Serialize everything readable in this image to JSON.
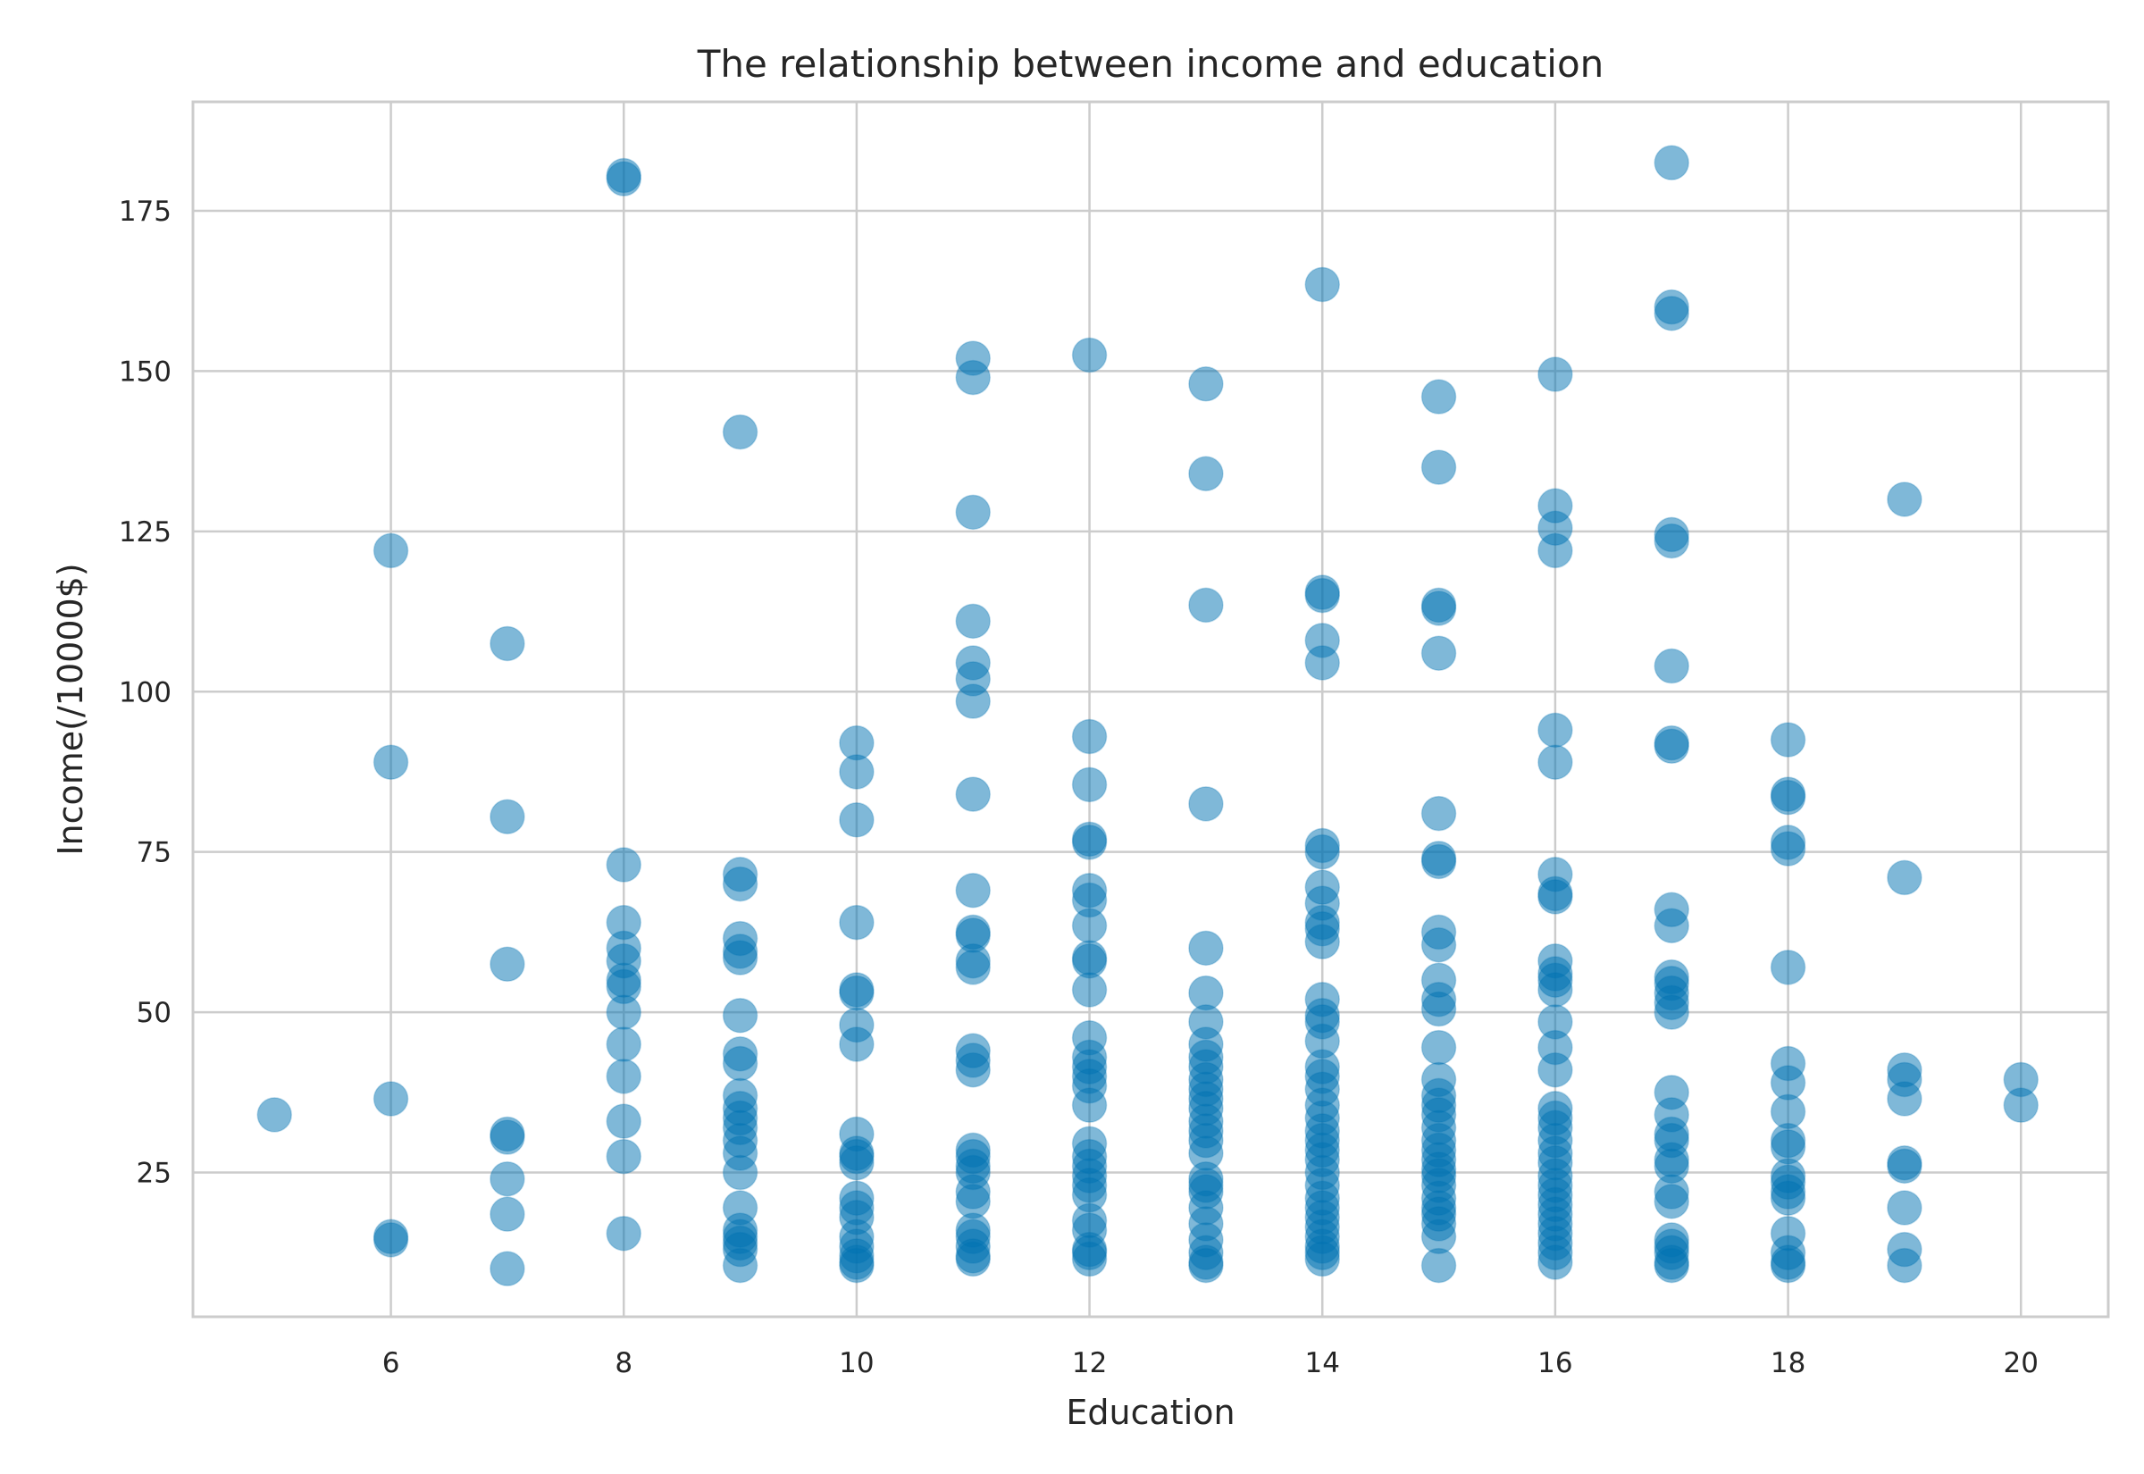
{
  "chart_data": {
    "type": "scatter",
    "title": "The relationship between income and education",
    "xlabel": "Education",
    "ylabel": "Income(/10000$)",
    "xlim": [
      4.3,
      20.75
    ],
    "ylim": [
      2.5,
      192
    ],
    "xticks": [
      6,
      8,
      10,
      12,
      14,
      16,
      18,
      20
    ],
    "yticks": [
      25,
      50,
      75,
      100,
      125,
      150,
      175
    ],
    "grid": true,
    "point_color": "#0072B2",
    "series": [
      {
        "points": [
          [
            5,
            34
          ],
          [
            6,
            122
          ],
          [
            6,
            89
          ],
          [
            6,
            36.5
          ],
          [
            6,
            15
          ],
          [
            6,
            14.5
          ],
          [
            7,
            107.5
          ],
          [
            7,
            80.5
          ],
          [
            7,
            57.5
          ],
          [
            7,
            31
          ],
          [
            7,
            30.5
          ],
          [
            7,
            24
          ],
          [
            7,
            18.5
          ],
          [
            7,
            10
          ],
          [
            8,
            180.5
          ],
          [
            8,
            180
          ],
          [
            8,
            73
          ],
          [
            8,
            64
          ],
          [
            8,
            60
          ],
          [
            8,
            58
          ],
          [
            8,
            55
          ],
          [
            8,
            54
          ],
          [
            8,
            50
          ],
          [
            8,
            45
          ],
          [
            8,
            40
          ],
          [
            8,
            33
          ],
          [
            8,
            27.5
          ],
          [
            8,
            15.5
          ],
          [
            9,
            140.5
          ],
          [
            9,
            71.5
          ],
          [
            9,
            70
          ],
          [
            9,
            61.5
          ],
          [
            9,
            59.5
          ],
          [
            9,
            58.5
          ],
          [
            9,
            49.5
          ],
          [
            9,
            43.5
          ],
          [
            9,
            42
          ],
          [
            9,
            37
          ],
          [
            9,
            35
          ],
          [
            9,
            33.5
          ],
          [
            9,
            32
          ],
          [
            9,
            30
          ],
          [
            9,
            28
          ],
          [
            9,
            25
          ],
          [
            9,
            19.5
          ],
          [
            9,
            16
          ],
          [
            9,
            15
          ],
          [
            9,
            14
          ],
          [
            9,
            13
          ],
          [
            9,
            10.5
          ],
          [
            10,
            92
          ],
          [
            10,
            87.5
          ],
          [
            10,
            80
          ],
          [
            10,
            64
          ],
          [
            10,
            53.5
          ],
          [
            10,
            53
          ],
          [
            10,
            48
          ],
          [
            10,
            45
          ],
          [
            10,
            31
          ],
          [
            10,
            28
          ],
          [
            10,
            27.5
          ],
          [
            10,
            26.5
          ],
          [
            10,
            21
          ],
          [
            10,
            19.5
          ],
          [
            10,
            18
          ],
          [
            10,
            15
          ],
          [
            10,
            13.5
          ],
          [
            10,
            12
          ],
          [
            10,
            11
          ],
          [
            10,
            10.5
          ],
          [
            11,
            152
          ],
          [
            11,
            149
          ],
          [
            11,
            128
          ],
          [
            11,
            111
          ],
          [
            11,
            104.5
          ],
          [
            11,
            102
          ],
          [
            11,
            98.5
          ],
          [
            11,
            84
          ],
          [
            11,
            69
          ],
          [
            11,
            62.5
          ],
          [
            11,
            62
          ],
          [
            11,
            58
          ],
          [
            11,
            57
          ],
          [
            11,
            44
          ],
          [
            11,
            42.5
          ],
          [
            11,
            41
          ],
          [
            11,
            28.5
          ],
          [
            11,
            27.5
          ],
          [
            11,
            26
          ],
          [
            11,
            25
          ],
          [
            11,
            22
          ],
          [
            11,
            20.5
          ],
          [
            11,
            16
          ],
          [
            11,
            15
          ],
          [
            11,
            13.5
          ],
          [
            11,
            12
          ],
          [
            11,
            11.5
          ],
          [
            12,
            152.5
          ],
          [
            12,
            93
          ],
          [
            12,
            85.5
          ],
          [
            12,
            77
          ],
          [
            12,
            76.5
          ],
          [
            12,
            69
          ],
          [
            12,
            67.5
          ],
          [
            12,
            63.5
          ],
          [
            12,
            58.5
          ],
          [
            12,
            58
          ],
          [
            12,
            53.5
          ],
          [
            12,
            46
          ],
          [
            12,
            43
          ],
          [
            12,
            41.5
          ],
          [
            12,
            40
          ],
          [
            12,
            38.5
          ],
          [
            12,
            35.5
          ],
          [
            12,
            29.5
          ],
          [
            12,
            27.5
          ],
          [
            12,
            26
          ],
          [
            12,
            24.5
          ],
          [
            12,
            23
          ],
          [
            12,
            21.5
          ],
          [
            12,
            17.5
          ],
          [
            12,
            16
          ],
          [
            12,
            13
          ],
          [
            12,
            12.5
          ],
          [
            12,
            11.5
          ],
          [
            13,
            148
          ],
          [
            13,
            134
          ],
          [
            13,
            113.5
          ],
          [
            13,
            82.5
          ],
          [
            13,
            60
          ],
          [
            13,
            53
          ],
          [
            13,
            48.5
          ],
          [
            13,
            45
          ],
          [
            13,
            43
          ],
          [
            13,
            41.5
          ],
          [
            13,
            39.5
          ],
          [
            13,
            38
          ],
          [
            13,
            36.5
          ],
          [
            13,
            35
          ],
          [
            13,
            33
          ],
          [
            13,
            31.5
          ],
          [
            13,
            30
          ],
          [
            13,
            28
          ],
          [
            13,
            24
          ],
          [
            13,
            23
          ],
          [
            13,
            22
          ],
          [
            13,
            19.5
          ],
          [
            13,
            17
          ],
          [
            13,
            14.5
          ],
          [
            13,
            12.5
          ],
          [
            13,
            11
          ],
          [
            13,
            10.5
          ],
          [
            14,
            163.5
          ],
          [
            14,
            115.5
          ],
          [
            14,
            115
          ],
          [
            14,
            108
          ],
          [
            14,
            104.5
          ],
          [
            14,
            76
          ],
          [
            14,
            75
          ],
          [
            14,
            69.5
          ],
          [
            14,
            67
          ],
          [
            14,
            64
          ],
          [
            14,
            63
          ],
          [
            14,
            61
          ],
          [
            14,
            52
          ],
          [
            14,
            49.5
          ],
          [
            14,
            48.5
          ],
          [
            14,
            45.5
          ],
          [
            14,
            41.5
          ],
          [
            14,
            40
          ],
          [
            14,
            38
          ],
          [
            14,
            35.5
          ],
          [
            14,
            33.5
          ],
          [
            14,
            31.5
          ],
          [
            14,
            30
          ],
          [
            14,
            28.5
          ],
          [
            14,
            27
          ],
          [
            14,
            25
          ],
          [
            14,
            23
          ],
          [
            14,
            21
          ],
          [
            14,
            19.5
          ],
          [
            14,
            18
          ],
          [
            14,
            16.5
          ],
          [
            14,
            15
          ],
          [
            14,
            13.5
          ],
          [
            14,
            12.5
          ],
          [
            14,
            11.5
          ],
          [
            15,
            146
          ],
          [
            15,
            135
          ],
          [
            15,
            113.5
          ],
          [
            15,
            113
          ],
          [
            15,
            106
          ],
          [
            15,
            81
          ],
          [
            15,
            74
          ],
          [
            15,
            73.5
          ],
          [
            15,
            62.5
          ],
          [
            15,
            60.5
          ],
          [
            15,
            55
          ],
          [
            15,
            52
          ],
          [
            15,
            50.5
          ],
          [
            15,
            44.5
          ],
          [
            15,
            39.5
          ],
          [
            15,
            37
          ],
          [
            15,
            35.5
          ],
          [
            15,
            34
          ],
          [
            15,
            32
          ],
          [
            15,
            30
          ],
          [
            15,
            28.5
          ],
          [
            15,
            27
          ],
          [
            15,
            25.5
          ],
          [
            15,
            24.5
          ],
          [
            15,
            23
          ],
          [
            15,
            21
          ],
          [
            15,
            19.5
          ],
          [
            15,
            18.5
          ],
          [
            15,
            17
          ],
          [
            15,
            15
          ],
          [
            15,
            10.5
          ],
          [
            16,
            149.5
          ],
          [
            16,
            129
          ],
          [
            16,
            125.5
          ],
          [
            16,
            122
          ],
          [
            16,
            94
          ],
          [
            16,
            89
          ],
          [
            16,
            71.5
          ],
          [
            16,
            68.5
          ],
          [
            16,
            68
          ],
          [
            16,
            58
          ],
          [
            16,
            56
          ],
          [
            16,
            55
          ],
          [
            16,
            53.5
          ],
          [
            16,
            48.5
          ],
          [
            16,
            44.5
          ],
          [
            16,
            41
          ],
          [
            16,
            35
          ],
          [
            16,
            33.5
          ],
          [
            16,
            32
          ],
          [
            16,
            30
          ],
          [
            16,
            28
          ],
          [
            16,
            26.5
          ],
          [
            16,
            24.5
          ],
          [
            16,
            23
          ],
          [
            16,
            21.5
          ],
          [
            16,
            20
          ],
          [
            16,
            18.5
          ],
          [
            16,
            17
          ],
          [
            16,
            15.5
          ],
          [
            16,
            14
          ],
          [
            16,
            12.5
          ],
          [
            16,
            11
          ],
          [
            17,
            182.5
          ],
          [
            17,
            160
          ],
          [
            17,
            159
          ],
          [
            17,
            124.5
          ],
          [
            17,
            123.5
          ],
          [
            17,
            104
          ],
          [
            17,
            92
          ],
          [
            17,
            91.5
          ],
          [
            17,
            66
          ],
          [
            17,
            63.5
          ],
          [
            17,
            55.5
          ],
          [
            17,
            54.5
          ],
          [
            17,
            53
          ],
          [
            17,
            51.5
          ],
          [
            17,
            50
          ],
          [
            17,
            37.5
          ],
          [
            17,
            34
          ],
          [
            17,
            31
          ],
          [
            17,
            30
          ],
          [
            17,
            27
          ],
          [
            17,
            26
          ],
          [
            17,
            22
          ],
          [
            17,
            20.5
          ],
          [
            17,
            14.5
          ],
          [
            17,
            13.5
          ],
          [
            17,
            12.5
          ],
          [
            17,
            11
          ],
          [
            17,
            10.5
          ],
          [
            18,
            92.5
          ],
          [
            18,
            84
          ],
          [
            18,
            83.5
          ],
          [
            18,
            76.5
          ],
          [
            18,
            75.5
          ],
          [
            18,
            57
          ],
          [
            18,
            42
          ],
          [
            18,
            39
          ],
          [
            18,
            34.5
          ],
          [
            18,
            30
          ],
          [
            18,
            29
          ],
          [
            18,
            24.5
          ],
          [
            18,
            23.5
          ],
          [
            18,
            22
          ],
          [
            18,
            21
          ],
          [
            18,
            15.5
          ],
          [
            18,
            12.5
          ],
          [
            18,
            11
          ],
          [
            18,
            10.5
          ],
          [
            19,
            130
          ],
          [
            19,
            71
          ],
          [
            19,
            41
          ],
          [
            19,
            39.5
          ],
          [
            19,
            36.5
          ],
          [
            19,
            26.5
          ],
          [
            19,
            26
          ],
          [
            19,
            19.5
          ],
          [
            19,
            13
          ],
          [
            19,
            10.5
          ],
          [
            20,
            39.5
          ],
          [
            20,
            35.5
          ]
        ]
      }
    ]
  }
}
